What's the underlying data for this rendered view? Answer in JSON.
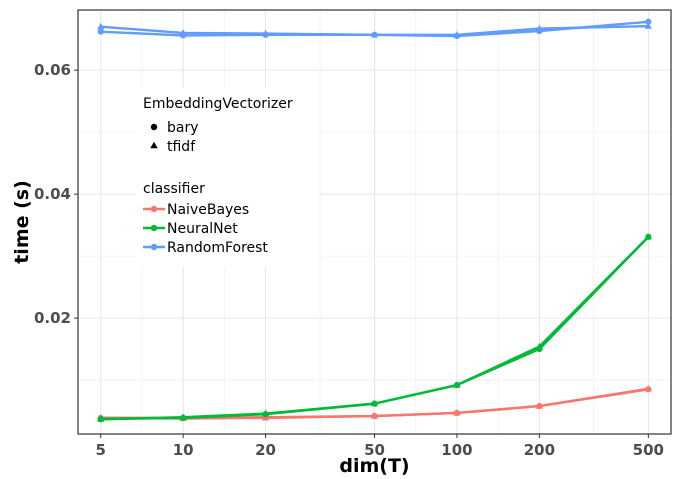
{
  "chart_data": {
    "type": "line",
    "title": "",
    "xlabel": "dim(T)",
    "ylabel": "time (s)",
    "x_scale": "log10",
    "x": [
      5,
      10,
      20,
      50,
      100,
      200,
      500
    ],
    "x_tick_labels": [
      "5",
      "10",
      "20",
      "50",
      "100",
      "200",
      "500"
    ],
    "y_ticks": [
      0.02,
      0.04,
      0.06
    ],
    "y_tick_labels": [
      "0.02",
      "0.04",
      "0.06"
    ],
    "ylim": [
      0.0013,
      0.0697
    ],
    "grid": true,
    "colors": {
      "NaiveBayes": "#F8766D",
      "NeuralNet": "#00BA38",
      "RandomForest": "#619CFF"
    },
    "series": [
      {
        "classifier": "NaiveBayes",
        "vectorizer": "bary",
        "values": [
          0.0039,
          0.0039,
          0.004,
          0.0042,
          0.0047,
          0.0058,
          0.0085
        ]
      },
      {
        "classifier": "NaiveBayes",
        "vectorizer": "tfidf",
        "values": [
          0.0039,
          0.0038,
          0.0039,
          0.0042,
          0.0047,
          0.0058,
          0.0086
        ]
      },
      {
        "classifier": "NeuralNet",
        "vectorizer": "bary",
        "values": [
          0.0037,
          0.0039,
          0.0045,
          0.0062,
          0.0092,
          0.015,
          0.0331
        ]
      },
      {
        "classifier": "NeuralNet",
        "vectorizer": "tfidf",
        "values": [
          0.0037,
          0.004,
          0.0046,
          0.0062,
          0.0092,
          0.0154,
          0.0331
        ]
      },
      {
        "classifier": "RandomForest",
        "vectorizer": "bary",
        "values": [
          0.0662,
          0.0656,
          0.0657,
          0.0657,
          0.0655,
          0.0663,
          0.0678
        ]
      },
      {
        "classifier": "RandomForest",
        "vectorizer": "tfidf",
        "values": [
          0.067,
          0.066,
          0.0659,
          0.0657,
          0.0657,
          0.0667,
          0.0671
        ]
      }
    ],
    "legend": {
      "placement": "top-left",
      "shape_title": "EmbeddingVectorizer",
      "shape_items": [
        {
          "label": "bary",
          "shape": "circle"
        },
        {
          "label": "tfidf",
          "shape": "triangle"
        }
      ],
      "color_title": "classifier",
      "color_items": [
        {
          "label": "NaiveBayes"
        },
        {
          "label": "NeuralNet"
        },
        {
          "label": "RandomForest"
        }
      ]
    }
  }
}
